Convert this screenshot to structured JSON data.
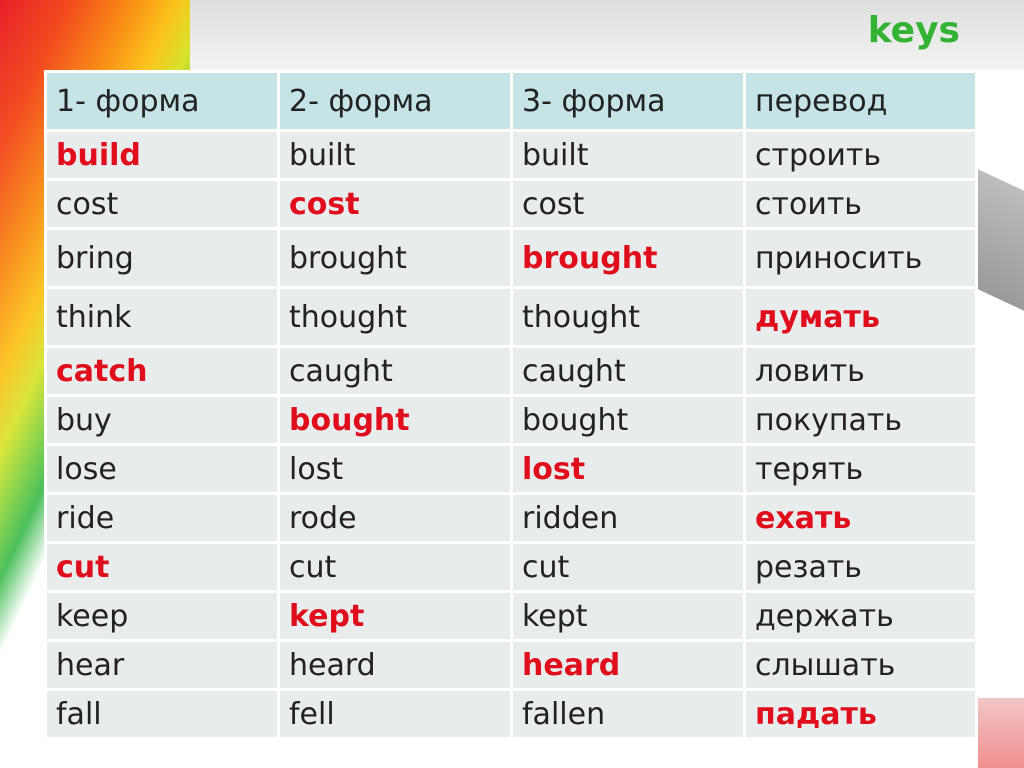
{
  "keys_label": "keys",
  "table": {
    "headers": [
      "1- форма",
      "2- форма",
      "3- форма",
      "перевод"
    ],
    "rows": [
      {
        "cells": [
          "build",
          "built",
          "built",
          "строить"
        ],
        "highlight": 0
      },
      {
        "cells": [
          "cost",
          "cost",
          "cost",
          "стоить"
        ],
        "highlight": 1
      },
      {
        "cells": [
          "bring",
          "brought",
          "brought",
          "приносить"
        ],
        "highlight": 2
      },
      {
        "cells": [
          "think",
          "thought",
          "thought",
          "думать"
        ],
        "highlight": 3
      },
      {
        "cells": [
          "catch",
          "caught",
          "caught",
          "ловить"
        ],
        "highlight": 0
      },
      {
        "cells": [
          "buy",
          "bought",
          "bought",
          "покупать"
        ],
        "highlight": 1
      },
      {
        "cells": [
          "lose",
          "lost",
          "lost",
          "терять"
        ],
        "highlight": 2
      },
      {
        "cells": [
          "ride",
          "rode",
          "ridden",
          "ехать"
        ],
        "highlight": 3
      },
      {
        "cells": [
          "cut",
          "cut",
          "cut",
          "резать"
        ],
        "highlight": 0
      },
      {
        "cells": [
          "keep",
          "kept",
          "kept",
          "держать"
        ],
        "highlight": 1
      },
      {
        "cells": [
          "hear",
          "heard",
          "heard",
          "слышать"
        ],
        "highlight": 2
      },
      {
        "cells": [
          "fall",
          "fell",
          "fallen",
          "падать"
        ],
        "highlight": 3
      }
    ]
  },
  "colors": {
    "highlight": "#e00e1c",
    "header_bg": "#c6e4e6",
    "cell_bg": "#e8ecec",
    "keys_color": "#33b233"
  }
}
